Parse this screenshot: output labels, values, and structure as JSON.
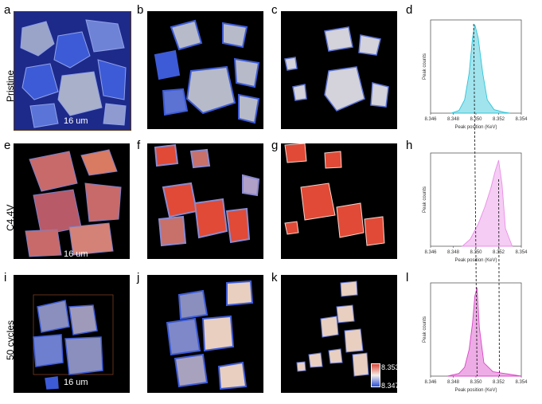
{
  "letters": [
    "a",
    "b",
    "c",
    "d",
    "e",
    "f",
    "g",
    "h",
    "i",
    "j",
    "k",
    "l"
  ],
  "rows": [
    "Pristine",
    "C4.4V",
    "50 cycles"
  ],
  "scale_bar": "16 um",
  "colorbar": {
    "max": "8.353",
    "min": "8.347"
  },
  "colors": {
    "pristine": "#2ec4d8",
    "c44v": "#e98ee6",
    "cycled": "#d946c7",
    "particle_blue": "#3d5bd6",
    "particle_red": "#e04a36",
    "particle_pale": "#e8cfc0"
  },
  "chart_data": [
    {
      "type": "area",
      "title": "",
      "xlabel": "Peak position (KeV)",
      "ylabel": "Peak counts",
      "xlim": [
        8.346,
        8.354
      ],
      "x_ticks": [
        "8.346",
        "8.348",
        "8.350",
        "8.352",
        "8.354"
      ],
      "peak_position": 8.3498,
      "series": [
        {
          "x": [
            8.3478,
            8.3485,
            8.349,
            8.3494,
            8.3497,
            8.3499,
            8.3502,
            8.3506,
            8.351,
            8.3516,
            8.3525,
            8.353
          ],
          "values": [
            0,
            0.03,
            0.15,
            0.45,
            0.85,
            1.0,
            0.85,
            0.45,
            0.15,
            0.04,
            0.01,
            0
          ]
        }
      ]
    },
    {
      "type": "area",
      "title": "",
      "xlabel": "Peak position (KeV)",
      "ylabel": "Peak counts",
      "xlim": [
        8.346,
        8.354
      ],
      "x_ticks": [
        "8.346",
        "8.348",
        "8.350",
        "8.352",
        "8.354"
      ],
      "peak_position": 8.352,
      "series": [
        {
          "x": [
            8.3488,
            8.3495,
            8.3502,
            8.3508,
            8.3513,
            8.3517,
            8.352,
            8.3523,
            8.3526,
            8.3532
          ],
          "values": [
            0,
            0.08,
            0.25,
            0.45,
            0.65,
            0.85,
            0.97,
            0.7,
            0.2,
            0
          ]
        }
      ]
    },
    {
      "type": "area",
      "title": "",
      "xlabel": "Peak position (KeV)",
      "ylabel": "Peak counts",
      "xlim": [
        8.346,
        8.354
      ],
      "x_ticks": [
        "8.346",
        "8.348",
        "8.350",
        "8.352",
        "8.354"
      ],
      "peak_position": 8.3501,
      "series": [
        {
          "x": [
            8.3475,
            8.3485,
            8.349,
            8.3494,
            8.3497,
            8.3499,
            8.3501,
            8.3503,
            8.3507,
            8.3515,
            8.3525,
            8.354
          ],
          "values": [
            0,
            0.03,
            0.1,
            0.3,
            0.6,
            0.9,
            1.0,
            0.55,
            0.15,
            0.05,
            0.03,
            0
          ]
        }
      ]
    }
  ]
}
